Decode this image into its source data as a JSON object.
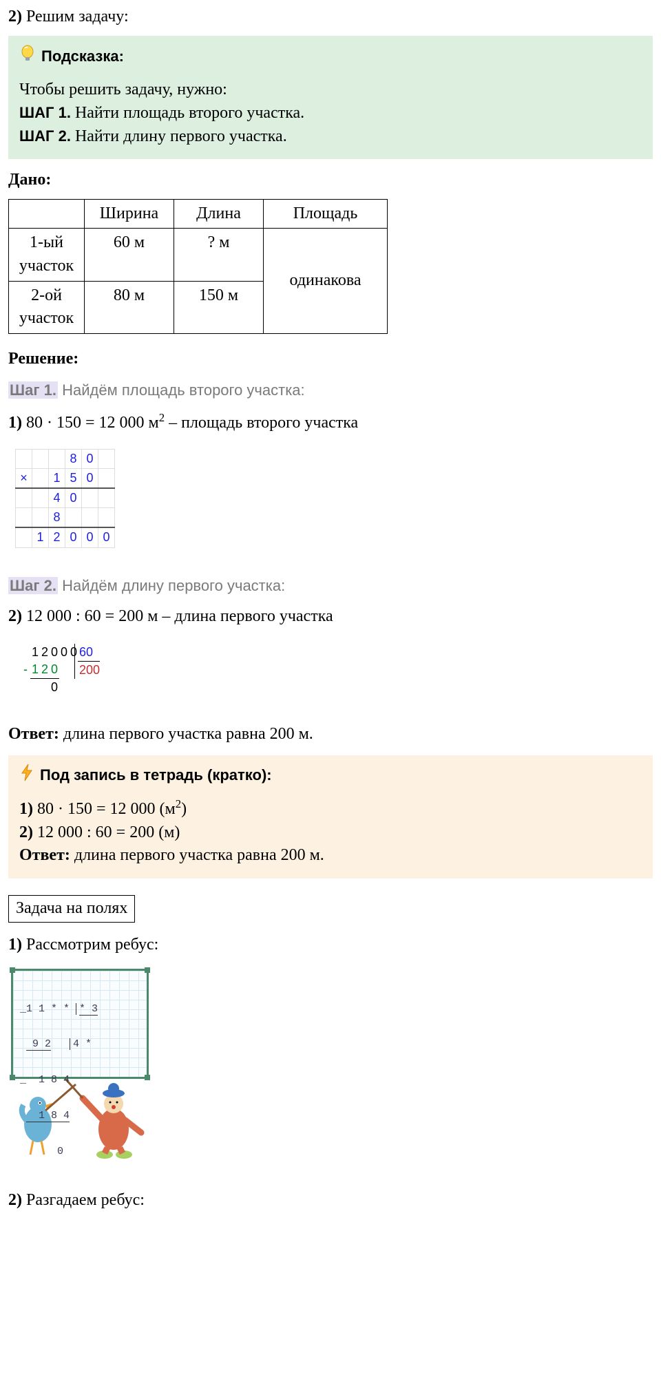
{
  "intro": {
    "num": "2)",
    "text": "Решим задачу:"
  },
  "hint": {
    "title": "Подсказка:",
    "lead": "Чтобы решить задачу, нужно:",
    "steps": [
      {
        "label": "ШАГ 1.",
        "text": "Найти площадь второго участка."
      },
      {
        "label": "ШАГ 2.",
        "text": "Найти длину первого участка."
      }
    ]
  },
  "given": {
    "label": "Дано:",
    "columns": [
      "",
      "Ширина",
      "Длина",
      "Площадь"
    ],
    "rows": [
      {
        "name": "1-ый участок",
        "width": "60 м",
        "length": "? м"
      },
      {
        "name": "2-ой участок",
        "width": "80 м",
        "length": "150 м"
      }
    ],
    "area_merged": "одинакова"
  },
  "solution": {
    "label": "Решение:",
    "step1": {
      "hl": "Шаг 1.",
      "text": "Найдём площадь второго участка:"
    },
    "line1": {
      "num": "1)",
      "expr": "80 · 150 = 12 000 м",
      "unit_sup": "2",
      "tail": " – площадь второго участка"
    },
    "colmul": {
      "grid": [
        [
          "",
          "",
          "",
          "8",
          "0",
          ""
        ],
        [
          "×",
          "",
          "1",
          "5",
          "0",
          ""
        ],
        [
          "",
          "",
          "4",
          "0",
          "",
          ""
        ],
        [
          "",
          "",
          "8",
          "",
          "",
          ""
        ],
        [
          "",
          "1",
          "2",
          "0",
          "0",
          "0"
        ]
      ],
      "underline_rows": [
        1,
        3
      ],
      "color": "#2020e0",
      "border_color": "#dddddd"
    },
    "step2": {
      "hl": "Шаг 2.",
      "text": "Найдём длину первого участка:"
    },
    "line2": {
      "num": "2)",
      "expr": "12 000 : 60 = 200 м – длина первого участка"
    },
    "longdiv": {
      "dividend": "12000",
      "divisor": "60",
      "quotient": "200",
      "sub1": "120",
      "rem": "0",
      "colors": {
        "dividend": "#000000",
        "divisor": "#2020e0",
        "quotient": "#c03030",
        "sub": "#008828"
      }
    }
  },
  "answer": {
    "label": "Ответ:",
    "text": "длина первого участка равна 200 м."
  },
  "notebook": {
    "title": "Под запись в тетрадь (кратко):",
    "lines": [
      {
        "num": "1)",
        "expr": "80 · 150 = 12 000 (м",
        "sup": "2",
        "tail": ")"
      },
      {
        "num": "2)",
        "expr": "12 000 : 60 = 200 (м)"
      }
    ],
    "answer_label": "Ответ:",
    "answer_text": "длина первого участка равна 200 м."
  },
  "margin_task": {
    "box": "Задача на полях",
    "p1": {
      "num": "1)",
      "text": "Рассмотрим ребус:"
    },
    "rebus": {
      "l1a": "1 1 * *",
      "l1b": "* 3",
      "l2a": " 9 2",
      "l2b": "4 *",
      "l3": "  1 8 4",
      "l4": "  1 8 4",
      "l5": "      0",
      "board_border": "#4a8a6a",
      "grid_color": "#d8e8f0",
      "text_color": "#3a3a55"
    },
    "p2": {
      "num": "2)",
      "text": "Разгадаем ребус:"
    }
  },
  "icons": {
    "bulb_colors": {
      "glass": "#ffd84a",
      "base": "#9aa0a8",
      "outline": "#c9a020"
    },
    "bolt_color": "#ffb020"
  },
  "characters_svg": {
    "bird": {
      "body": "#6ab3d6",
      "beak": "#f0a030",
      "feet": "#f0a030"
    },
    "clown": {
      "suit": "#d86a4a",
      "hat": "#3a72c0",
      "face": "#f4d8b0",
      "stick": "#8a5a30"
    }
  }
}
